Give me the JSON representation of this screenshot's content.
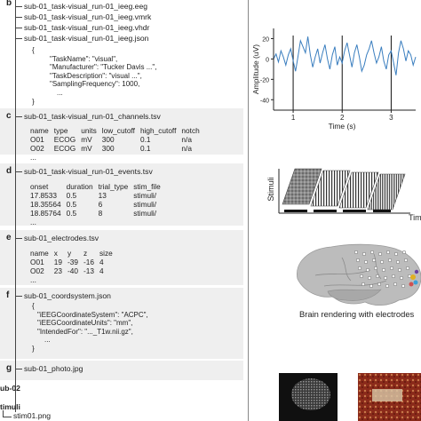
{
  "files": {
    "eeg": "sub-01_task-visual_run-01_ieeg.eeg",
    "vmrk": "sub-01_task-visual_run-01_ieeg.vmrk",
    "vhdr": "sub-01_task-visual_run-01_ieeg.vhdr",
    "json": "sub-01_task-visual_run-01_ieeg.json",
    "channels": "sub-01_task-visual_run-01_channels.tsv",
    "events": "sub-01_task-visual_run-01_events.tsv",
    "electrodes": "sub-01_electrodes.tsv",
    "coordsystem": "sub-01_coordsystem.json",
    "photo": "sub-01_photo.jpg"
  },
  "sections": {
    "b": "b",
    "c": "c",
    "d": "d",
    "e": "e",
    "f": "f",
    "g": "g"
  },
  "ieeg_json": {
    "open": "{",
    "lines": [
      "\"TaskName\": \"visual\",",
      "\"Manufacturer\": \"Tucker Davis ...\",",
      "\"TaskDescription\": \"visual ...\",",
      "\"SamplingFrequency\": 1000,",
      "..."
    ],
    "close": "}"
  },
  "channels_table": {
    "header": [
      "name",
      "type",
      "units",
      "low_cutoff",
      "high_cutoff",
      "notch"
    ],
    "rows": [
      [
        "O01",
        "ECOG",
        "mV",
        "300",
        "0.1",
        "n/a"
      ],
      [
        "O02",
        "ECOG",
        "mV",
        "300",
        "0.1",
        "n/a"
      ]
    ],
    "ellipsis": "..."
  },
  "events_table": {
    "header": [
      "onset",
      "duration",
      "trial_type",
      "stim_file"
    ],
    "rows": [
      [
        "17.8533",
        "0.5",
        "13",
        "stimuli/"
      ],
      [
        "18.35564",
        "0.5",
        "6",
        "stimuli/"
      ],
      [
        "18.85764",
        "0.5",
        "8",
        "stimuli/"
      ]
    ],
    "ellipsis": "..."
  },
  "electrodes_table": {
    "header": [
      "name",
      "x",
      "y",
      "z",
      "size"
    ],
    "rows": [
      [
        "O01",
        "19",
        "-39",
        "-16",
        "4"
      ],
      [
        "O02",
        "23",
        "-40",
        "-13",
        "4"
      ]
    ],
    "ellipsis": "..."
  },
  "coordsystem_json": {
    "open": "{",
    "lines": [
      "\"iEEGCoordinateSystem\": \"ACPC\",",
      "\"iEEGCoordinateUnits\": \"mm\",",
      "\"IntendedFor\": \"..._T1w.nii.gz\","
    ],
    "ellipsis": "...",
    "close": "}"
  },
  "footer": {
    "sub02": "ub-02",
    "stimuli": "timuli",
    "stim_file": "stim01.png"
  },
  "signal_plot": {
    "ylabel": "Amplitude (uV)",
    "xlabel": "Time (s)",
    "yticks": [
      "20",
      "0",
      "-20",
      "-40"
    ],
    "xticks": [
      "1",
      "2",
      "3"
    ]
  },
  "stimuli_panel": {
    "ylabel": "Stimuli",
    "xlabel": "Tim"
  },
  "brain": {
    "caption": "Brain rendering with electrodes"
  },
  "colors": {
    "signal": "#3a7ebf",
    "panel_bg": "#efefef",
    "brain": "#b9b9b9"
  },
  "chart_data": {
    "type": "line",
    "title": "",
    "xlabel": "Time (s)",
    "ylabel": "Amplitude (uV)",
    "xlim": [
      0.6,
      3.5
    ],
    "ylim": [
      -45,
      30
    ],
    "x_ticks": [
      1,
      2,
      3
    ],
    "y_ticks": [
      20,
      0,
      -20,
      -40
    ],
    "markers_at": [
      1,
      2,
      3
    ],
    "series": [
      {
        "x": [
          0.6,
          0.65,
          0.7,
          0.75,
          0.8,
          0.85,
          0.9,
          0.95,
          1.0,
          1.05,
          1.1,
          1.15,
          1.2,
          1.25,
          1.3,
          1.35,
          1.4,
          1.45,
          1.5,
          1.55,
          1.6,
          1.65,
          1.7,
          1.75,
          1.8,
          1.85,
          1.9,
          1.95,
          2.0,
          2.05,
          2.1,
          2.15,
          2.2,
          2.25,
          2.3,
          2.35,
          2.4,
          2.45,
          2.5,
          2.55,
          2.6,
          2.65,
          2.7,
          2.75,
          2.8,
          2.85,
          2.9,
          2.95,
          3.0,
          3.05,
          3.1,
          3.15,
          3.2,
          3.25,
          3.3,
          3.35,
          3.4,
          3.45,
          3.5
        ],
        "values": [
          0,
          5,
          -3,
          8,
          2,
          -6,
          4,
          10,
          -2,
          -12,
          3,
          18,
          12,
          6,
          22,
          4,
          -8,
          2,
          10,
          -4,
          6,
          14,
          0,
          -10,
          4,
          12,
          -6,
          2,
          -4,
          8,
          16,
          4,
          -8,
          6,
          14,
          2,
          -12,
          -6,
          4,
          10,
          18,
          6,
          -4,
          2,
          12,
          -2,
          -10,
          4,
          8,
          -4,
          -16,
          6,
          18,
          10,
          -2,
          8,
          4,
          -6,
          2
        ]
      }
    ]
  }
}
